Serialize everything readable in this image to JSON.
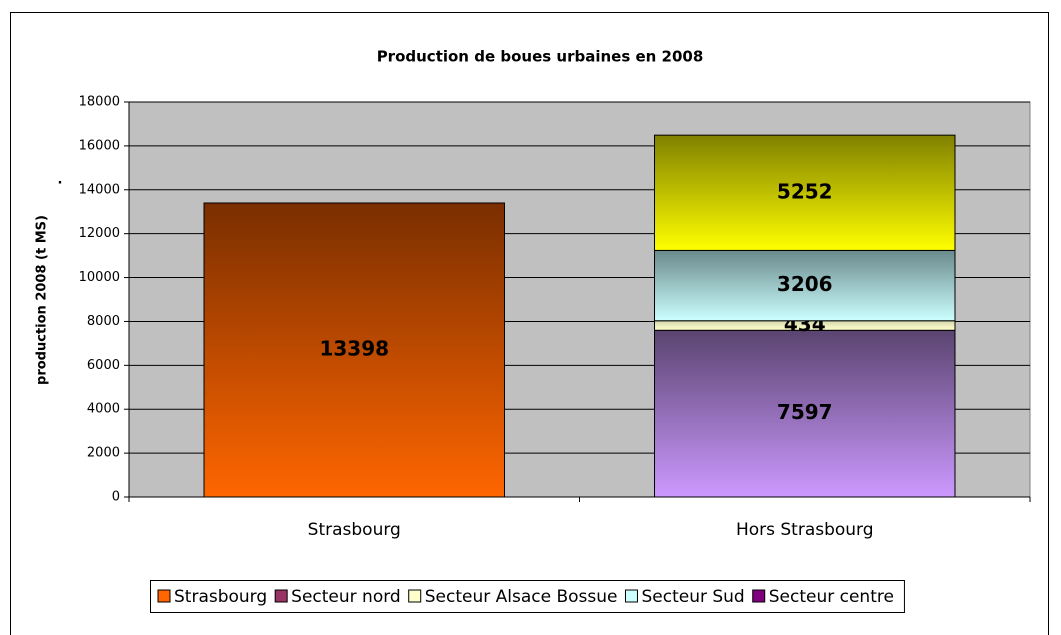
{
  "chart_data": {
    "type": "stacked_bar",
    "title": "Production de boues urbaines en 2008",
    "y_label": "production 2008 (t MS)",
    "annotation": ".",
    "categories": [
      "Strasbourg",
      "Hors Strasbourg"
    ],
    "series": [
      {
        "name": "Strasbourg",
        "color": "#ff6600",
        "color_top": "#7a2e00",
        "legend_color": "#ff6600",
        "values": [
          13398,
          null
        ]
      },
      {
        "name": "Secteur nord",
        "color": "#cc99ff",
        "color_top": "#5a4470",
        "legend_color": "#993366",
        "values": [
          null,
          7597
        ]
      },
      {
        "name": "Secteur Alsace Bossue",
        "color": "#ffffcc",
        "color_top": "#d8d8b0",
        "legend_color": "#ffffcc",
        "values": [
          null,
          434
        ]
      },
      {
        "name": "Secteur Sud",
        "color": "#ccffff",
        "color_top": "#6a8a8c",
        "legend_color": "#ccffff",
        "values": [
          null,
          3206
        ]
      },
      {
        "name": "Secteur centre",
        "color": "#ffff00",
        "color_top": "#808000",
        "legend_color": "#800080",
        "values": [
          null,
          5252
        ]
      }
    ],
    "ylim": [
      0,
      18000
    ],
    "yticks": [
      0,
      2000,
      4000,
      6000,
      8000,
      10000,
      12000,
      14000,
      16000,
      18000
    ],
    "grid": true,
    "plot_background": "#c0c0c0",
    "legend": "bottom"
  }
}
